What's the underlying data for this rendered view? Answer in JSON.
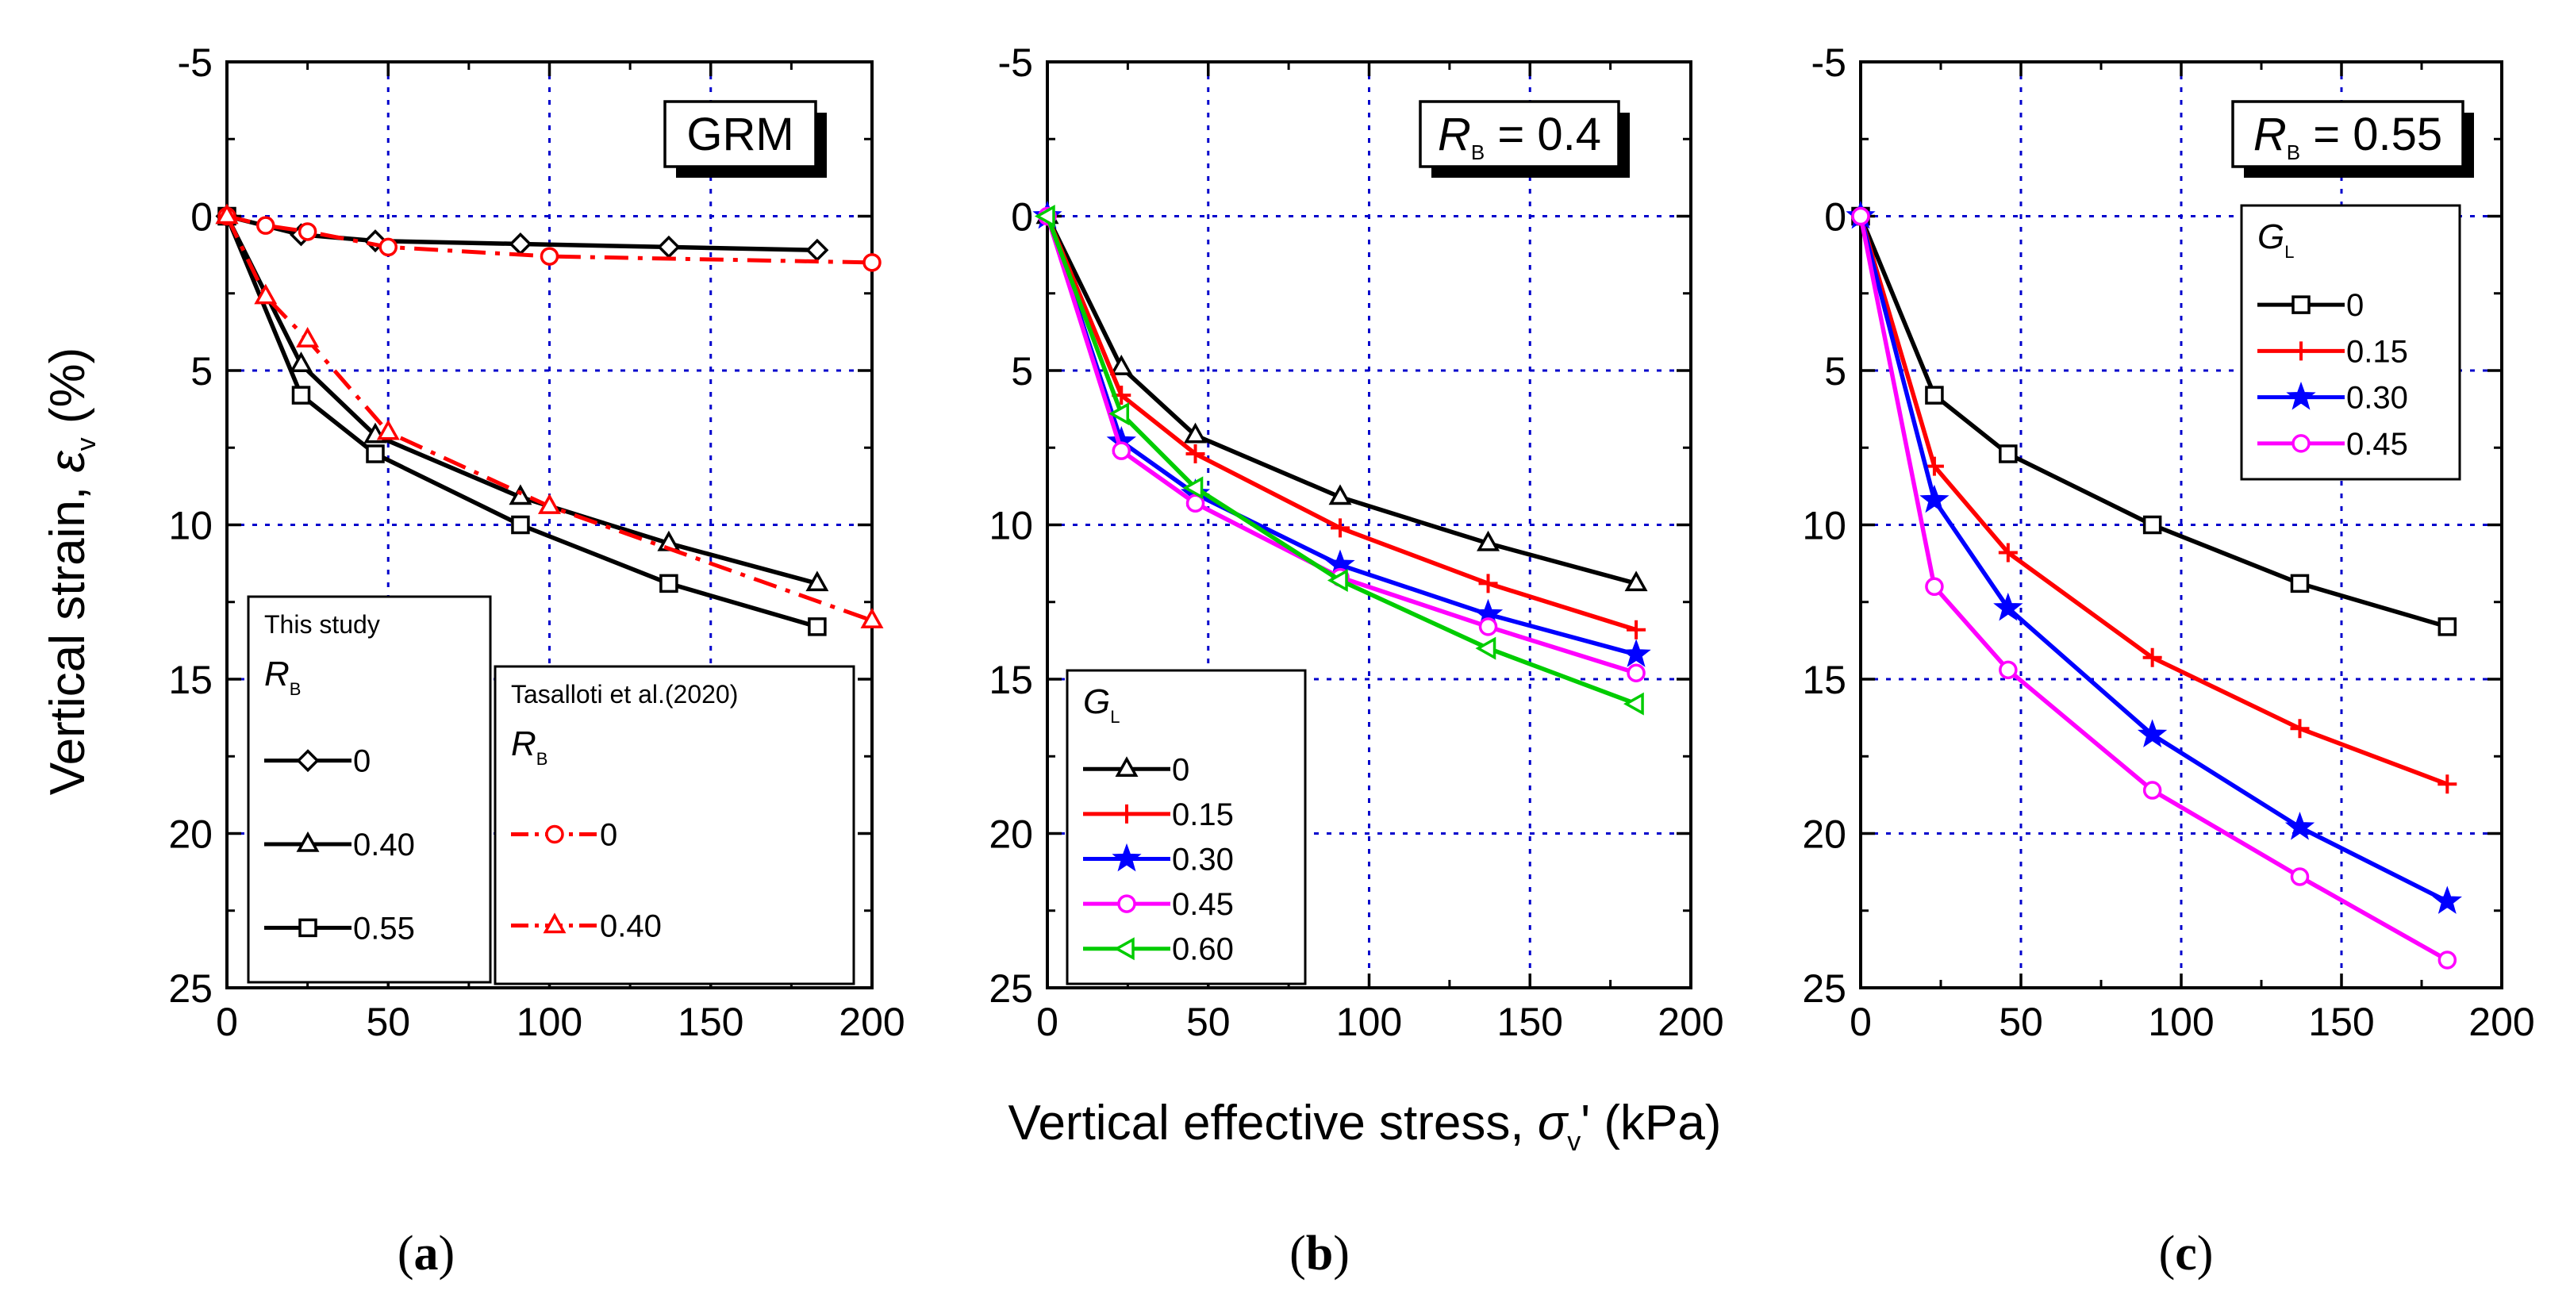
{
  "figure": {
    "ylabel_text": "Vertical strain, ",
    "ylabel_symbol": "ε",
    "ylabel_sub": "v",
    "ylabel_unit": " (%)",
    "xlabel_text": "Vertical effective stress, ",
    "xlabel_symbol": "σ",
    "xlabel_sub": "v",
    "xlabel_unit": "' (kPa)"
  },
  "chart_data": [
    {
      "type": "line",
      "panel_label": "a",
      "annotation": "GRM",
      "xlim": [
        0,
        200
      ],
      "ylim": [
        -5,
        25
      ],
      "y_inverted": true,
      "x_ticks": [
        "0",
        "50",
        "100",
        "150",
        "200"
      ],
      "y_ticks": [
        "-5",
        "0",
        "5",
        "10",
        "15",
        "20",
        "25"
      ],
      "grid": true,
      "legends": [
        {
          "title": "This study",
          "symbol": "R",
          "symbol_sub": "B",
          "entries": [
            {
              "label": "0",
              "series": 0
            },
            {
              "label": "0.40",
              "series": 1
            },
            {
              "label": "0.55",
              "series": 2
            }
          ]
        },
        {
          "title": "Tasalloti et al.(2020)",
          "symbol": "R",
          "symbol_sub": "B",
          "entries": [
            {
              "label": "0",
              "series": 3
            },
            {
              "label": "0.40",
              "series": 4
            }
          ]
        }
      ],
      "series": [
        {
          "name": "This study R_B = 0",
          "color": "#000000",
          "marker": "diamond",
          "dash": "solid",
          "x": [
            0,
            23,
            46,
            91,
            137,
            183
          ],
          "y": [
            0,
            0.6,
            0.8,
            0.9,
            1.0,
            1.1
          ]
        },
        {
          "name": "This study R_B = 0.40",
          "color": "#000000",
          "marker": "triangle",
          "dash": "solid",
          "x": [
            0,
            23,
            46,
            91,
            137,
            183
          ],
          "y": [
            0,
            4.8,
            7.1,
            9.1,
            10.6,
            11.9
          ]
        },
        {
          "name": "This study R_B = 0.55",
          "color": "#000000",
          "marker": "square",
          "dash": "solid",
          "x": [
            0,
            23,
            46,
            91,
            137,
            183
          ],
          "y": [
            0,
            5.8,
            7.7,
            10.0,
            11.9,
            13.3
          ]
        },
        {
          "name": "Tasalloti et al.(2020) R_B = 0",
          "color": "#ff0000",
          "marker": "circle",
          "dash": "dashdot",
          "x": [
            0,
            12,
            25,
            50,
            100,
            200
          ],
          "y": [
            0,
            0.3,
            0.5,
            1.0,
            1.3,
            1.5
          ]
        },
        {
          "name": "Tasalloti et al.(2020) R_B = 0.40",
          "color": "#ff0000",
          "marker": "triangle",
          "dash": "dashdot",
          "x": [
            0,
            12,
            25,
            50,
            100,
            200
          ],
          "y": [
            0,
            2.6,
            4.0,
            7.0,
            9.4,
            13.1
          ]
        }
      ]
    },
    {
      "type": "line",
      "panel_label": "b",
      "annotation": "= 0.4",
      "annotation_symbol": "R",
      "annotation_sub": "B",
      "xlim": [
        0,
        200
      ],
      "ylim": [
        -5,
        25
      ],
      "y_inverted": true,
      "x_ticks": [
        "0",
        "50",
        "100",
        "150",
        "200"
      ],
      "y_ticks": [
        "-5",
        "0",
        "5",
        "10",
        "15",
        "20",
        "25"
      ],
      "grid": true,
      "legends": [
        {
          "symbol": "G",
          "symbol_sub": "L",
          "entries": [
            {
              "label": "0",
              "series": 0
            },
            {
              "label": "0.15",
              "series": 1
            },
            {
              "label": "0.30",
              "series": 2
            },
            {
              "label": "0.45",
              "series": 3
            },
            {
              "label": "0.60",
              "series": 4
            }
          ]
        }
      ],
      "series": [
        {
          "name": "G_L = 0",
          "color": "#000000",
          "marker": "triangle",
          "dash": "solid",
          "x": [
            0,
            23,
            46,
            91,
            137,
            183
          ],
          "y": [
            0,
            4.9,
            7.1,
            9.1,
            10.6,
            11.9
          ]
        },
        {
          "name": "G_L = 0.15",
          "color": "#ff0000",
          "marker": "plus",
          "dash": "solid",
          "x": [
            0,
            23,
            46,
            91,
            137,
            183
          ],
          "y": [
            0,
            5.8,
            7.7,
            10.1,
            11.9,
            13.4
          ]
        },
        {
          "name": "G_L = 0.30",
          "color": "#0000ff",
          "marker": "star",
          "dash": "solid",
          "x": [
            0,
            23,
            46,
            91,
            137,
            183
          ],
          "y": [
            0,
            7.3,
            9.0,
            11.3,
            12.9,
            14.2
          ]
        },
        {
          "name": "G_L = 0.45",
          "color": "#ff00ff",
          "marker": "circle",
          "dash": "solid",
          "x": [
            0,
            23,
            46,
            91,
            137,
            183
          ],
          "y": [
            0,
            7.6,
            9.3,
            11.7,
            13.3,
            14.8
          ]
        },
        {
          "name": "G_L = 0.60",
          "color": "#00cc00",
          "marker": "left-triangle",
          "dash": "solid",
          "x": [
            0,
            23,
            46,
            91,
            137,
            183
          ],
          "y": [
            0,
            6.4,
            8.8,
            11.8,
            14.0,
            15.8
          ]
        }
      ]
    },
    {
      "type": "line",
      "panel_label": "c",
      "annotation": "= 0.55",
      "annotation_symbol": "R",
      "annotation_sub": "B",
      "xlim": [
        0,
        200
      ],
      "ylim": [
        -5,
        25
      ],
      "y_inverted": true,
      "x_ticks": [
        "0",
        "50",
        "100",
        "150",
        "200"
      ],
      "y_ticks": [
        "-5",
        "0",
        "5",
        "10",
        "15",
        "20",
        "25"
      ],
      "grid": true,
      "legends": [
        {
          "symbol": "G",
          "symbol_sub": "L",
          "entries": [
            {
              "label": "0",
              "series": 0
            },
            {
              "label": "0.15",
              "series": 1
            },
            {
              "label": "0.30",
              "series": 2
            },
            {
              "label": "0.45",
              "series": 3
            }
          ]
        }
      ],
      "series": [
        {
          "name": "G_L = 0",
          "color": "#000000",
          "marker": "square",
          "dash": "solid",
          "x": [
            0,
            23,
            46,
            91,
            137,
            183
          ],
          "y": [
            0,
            5.8,
            7.7,
            10.0,
            11.9,
            13.3
          ]
        },
        {
          "name": "G_L = 0.15",
          "color": "#ff0000",
          "marker": "plus",
          "dash": "solid",
          "x": [
            0,
            23,
            46,
            91,
            137,
            183
          ],
          "y": [
            0,
            8.1,
            10.9,
            14.3,
            16.6,
            18.4
          ]
        },
        {
          "name": "G_L = 0.30",
          "color": "#0000ff",
          "marker": "star",
          "dash": "solid",
          "x": [
            0,
            23,
            46,
            91,
            137,
            183
          ],
          "y": [
            0,
            9.2,
            12.7,
            16.8,
            19.8,
            22.2
          ]
        },
        {
          "name": "G_L = 0.45",
          "color": "#ff00ff",
          "marker": "circle",
          "dash": "solid",
          "x": [
            0,
            23,
            46,
            91,
            137,
            183
          ],
          "y": [
            0,
            12.0,
            14.7,
            18.6,
            21.4,
            24.1
          ]
        }
      ]
    }
  ]
}
